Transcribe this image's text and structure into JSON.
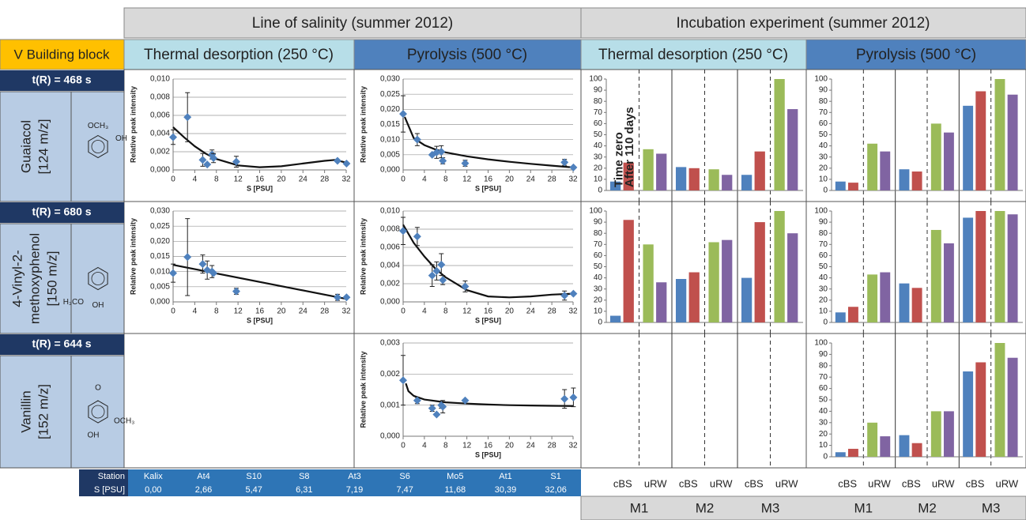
{
  "header": {
    "salinity": "Line of salinity (summer 2012)",
    "incubation": "Incubation experiment (summer 2012)",
    "building_block": "V Building block",
    "thermal": "Thermal desorption (250 °C)",
    "pyrolysis": "Pyrolysis (500 °C)"
  },
  "compounds": [
    {
      "tr": "t(R) = 468 s",
      "name": [
        "Guaiacol",
        "[124 m/z]"
      ],
      "structure_labels": [
        "OCH₃",
        "OH"
      ]
    },
    {
      "tr": "t(R) = 680 s",
      "name": [
        "4-Vinyl-2-",
        "methoxyphenol",
        "[150 m/z]"
      ],
      "structure_labels": [
        "H₃CO",
        "OH"
      ]
    },
    {
      "tr": "t(R) = 644 s",
      "name": [
        "Vanillin",
        "[152 m/z]"
      ],
      "structure_labels": [
        "O",
        "OCH₃",
        "OH"
      ]
    }
  ],
  "station_table": {
    "headers": [
      "Station",
      "S [PSU]"
    ],
    "stations": [
      "Kalix",
      "At4",
      "S10",
      "S8",
      "At3",
      "S6",
      "Mo5",
      "At1",
      "S1"
    ],
    "salinity": [
      "0,00",
      "2,66",
      "5,47",
      "6,31",
      "7,19",
      "7,47",
      "11,68",
      "30,39",
      "32,06"
    ]
  },
  "incubation_axis": {
    "subgroups": [
      "cBS",
      "uRW"
    ],
    "groups": [
      "M1",
      "M2",
      "M3"
    ]
  },
  "chart_data": [
    {
      "type": "scatter",
      "color": "#4f81bd",
      "grid": true,
      "ylabel": "Relative peak intensity",
      "xlabel": "S [PSU]",
      "x": [
        0,
        2.66,
        5.47,
        6.31,
        7.19,
        7.47,
        11.68,
        30.39,
        32.06
      ],
      "values": [
        0.0036,
        0.0058,
        0.0011,
        0.0006,
        0.0017,
        0.0013,
        0.0009,
        0.001,
        0.0007
      ],
      "errors": [
        0.0008,
        0.0027,
        0.0007,
        null,
        0.0005,
        0.0005,
        0.0006,
        null,
        null
      ],
      "fit": {
        "x": [
          0,
          2,
          4,
          6,
          8,
          12,
          16,
          20,
          24,
          28,
          30,
          32
        ],
        "values": [
          0.0047,
          0.0036,
          0.0026,
          0.0018,
          0.0012,
          0.0005,
          0.0003,
          0.0004,
          0.0007,
          0.001,
          0.0011,
          0.0008
        ]
      },
      "xlim": [
        0,
        32
      ],
      "xticks": [
        0,
        4,
        8,
        12,
        16,
        20,
        24,
        28,
        32
      ],
      "ylim": [
        0,
        0.01
      ],
      "yticks": [
        {
          "value": 0,
          "label": "0,000"
        },
        {
          "value": 0.002,
          "label": "0,002"
        },
        {
          "value": 0.004,
          "label": "0,004"
        },
        {
          "value": 0.006,
          "label": "0,006"
        },
        {
          "value": 0.008,
          "label": "0,008"
        },
        {
          "value": 0.01,
          "label": "0,010"
        }
      ]
    },
    {
      "type": "scatter",
      "color": "#4f81bd",
      "grid": true,
      "ylabel": "Relative peak intensity",
      "xlabel": "S [PSU]",
      "x": [
        0,
        2.66,
        5.47,
        6.31,
        7.19,
        7.47,
        11.68,
        30.39,
        32.06
      ],
      "values": [
        0.0185,
        0.01,
        0.005,
        0.0058,
        0.006,
        0.003,
        0.0022,
        0.0025,
        0.0008
      ],
      "errors": [
        0.006,
        0.002,
        null,
        0.002,
        0.002,
        0.001,
        0.001,
        0.001,
        null
      ],
      "fit": {
        "x": [
          0.3,
          2,
          4,
          6,
          8,
          12,
          16,
          20,
          24,
          28,
          32
        ],
        "values": [
          0.0175,
          0.0105,
          0.0082,
          0.0068,
          0.0058,
          0.0045,
          0.0035,
          0.0027,
          0.002,
          0.0014,
          0.0008
        ]
      },
      "xlim": [
        0,
        32
      ],
      "xticks": [
        0,
        4,
        8,
        12,
        16,
        20,
        24,
        28,
        32
      ],
      "ylim": [
        0,
        0.03
      ],
      "yticks": [
        {
          "value": 0,
          "label": "0,000"
        },
        {
          "value": 0.005,
          "label": "0,005"
        },
        {
          "value": 0.01,
          "label": "0,010"
        },
        {
          "value": 0.015,
          "label": "0,015"
        },
        {
          "value": 0.02,
          "label": "0,020"
        },
        {
          "value": 0.025,
          "label": "0,025"
        },
        {
          "value": 0.03,
          "label": "0,030"
        }
      ]
    },
    {
      "type": "scatter",
      "color": "#4f81bd",
      "grid": true,
      "ylabel": "Relative peak intensity",
      "xlabel": "S [PSU]",
      "x": [
        0,
        2.66,
        5.47,
        6.31,
        7.19,
        7.47,
        11.68,
        30.39,
        32.06
      ],
      "values": [
        0.0095,
        0.0148,
        0.0125,
        0.0105,
        0.01,
        0.0095,
        0.0035,
        0.0015,
        0.0015
      ],
      "errors": [
        0.003,
        0.0127,
        0.003,
        0.003,
        0.002,
        null,
        0.001,
        0.001,
        null
      ],
      "fit": {
        "x": [
          0,
          32
        ],
        "values": [
          0.0122,
          0.001
        ]
      },
      "xlim": [
        0,
        32
      ],
      "xticks": [
        0,
        4,
        8,
        12,
        16,
        20,
        24,
        28,
        32
      ],
      "ylim": [
        0,
        0.03
      ],
      "yticks": [
        {
          "value": 0,
          "label": "0,000"
        },
        {
          "value": 0.005,
          "label": "0,005"
        },
        {
          "value": 0.01,
          "label": "0,010"
        },
        {
          "value": 0.015,
          "label": "0,015"
        },
        {
          "value": 0.02,
          "label": "0,020"
        },
        {
          "value": 0.025,
          "label": "0,025"
        },
        {
          "value": 0.03,
          "label": "0,030"
        }
      ]
    },
    {
      "type": "scatter",
      "color": "#4f81bd",
      "grid": true,
      "ylabel": "Relative peak intensity",
      "xlabel": "S [PSU]",
      "x": [
        0,
        2.66,
        5.47,
        6.31,
        7.19,
        7.47,
        11.68,
        30.39,
        32.06
      ],
      "values": [
        0.0078,
        0.0072,
        0.0029,
        0.0034,
        0.0041,
        0.0024,
        0.0017,
        0.0007,
        0.0009
      ],
      "errors": [
        0.0015,
        0.001,
        0.0012,
        0.001,
        0.0012,
        0.0005,
        0.0006,
        0.0005,
        null
      ],
      "fit": {
        "x": [
          0,
          2,
          4,
          6,
          8,
          12,
          16,
          20,
          24,
          28,
          32
        ],
        "values": [
          0.0085,
          0.0065,
          0.005,
          0.0037,
          0.0027,
          0.0013,
          0.0006,
          0.0005,
          0.0006,
          0.0008,
          0.0009
        ]
      },
      "xlim": [
        0,
        32
      ],
      "xticks": [
        0,
        4,
        8,
        12,
        16,
        20,
        24,
        28,
        32
      ],
      "ylim": [
        0,
        0.01
      ],
      "yticks": [
        {
          "value": 0,
          "label": "0,000"
        },
        {
          "value": 0.002,
          "label": "0,002"
        },
        {
          "value": 0.004,
          "label": "0,004"
        },
        {
          "value": 0.006,
          "label": "0,006"
        },
        {
          "value": 0.008,
          "label": "0,008"
        },
        {
          "value": 0.01,
          "label": "0,010"
        }
      ]
    },
    {
      "type": "scatter",
      "color": "#4f81bd",
      "grid": true,
      "ylabel": "Relative peak intensity",
      "xlabel": "S [PSU]",
      "x": [
        0,
        2.66,
        5.47,
        6.31,
        7.19,
        7.47,
        11.68,
        30.39,
        32.06
      ],
      "values": [
        0.0018,
        0.00115,
        0.0009,
        0.0007,
        0.001,
        0.00095,
        0.00115,
        0.0012,
        0.00125
      ],
      "errors": [
        0.0008,
        0.0001,
        0.0001,
        null,
        0.0001,
        0.0002,
        null,
        0.0003,
        0.0003
      ],
      "fit": {
        "x": [
          0.5,
          1,
          2,
          4,
          8,
          12,
          16,
          20,
          24,
          28,
          32
        ],
        "values": [
          0.0017,
          0.00145,
          0.0013,
          0.00118,
          0.00109,
          0.00105,
          0.00102,
          0.001,
          0.00099,
          0.00098,
          0.00097
        ]
      },
      "xlim": [
        0,
        32
      ],
      "xticks": [
        0,
        4,
        8,
        12,
        16,
        20,
        24,
        28,
        32
      ],
      "ylim": [
        0,
        0.003
      ],
      "yticks": [
        {
          "value": 0,
          "label": "0,000"
        },
        {
          "value": 0.001,
          "label": "0,001"
        },
        {
          "value": 0.002,
          "label": "0,002"
        },
        {
          "value": 0.003,
          "label": "0,003"
        }
      ]
    },
    {
      "type": "bar",
      "colors": [
        "#4f81bd",
        "#c0504d",
        "#9bbb59",
        "#8064a2"
      ],
      "annotations": [
        "Time zero",
        "After 110 days"
      ],
      "values": [
        [
          8,
          25,
          37,
          33
        ],
        [
          21,
          20,
          19,
          14
        ],
        [
          14,
          35,
          100,
          73
        ]
      ],
      "ylim": [
        0,
        100
      ],
      "yticks": [
        0,
        10,
        20,
        30,
        40,
        50,
        60,
        70,
        80,
        90,
        100
      ]
    },
    {
      "type": "bar",
      "colors": [
        "#4f81bd",
        "#c0504d",
        "#9bbb59",
        "#8064a2"
      ],
      "values": [
        [
          8,
          7,
          42,
          35
        ],
        [
          19,
          17,
          60,
          52
        ],
        [
          76,
          89,
          100,
          86
        ]
      ],
      "ylim": [
        0,
        100
      ],
      "yticks": [
        0,
        10,
        20,
        30,
        40,
        50,
        60,
        70,
        80,
        90,
        100
      ]
    },
    {
      "type": "bar",
      "colors": [
        "#4f81bd",
        "#c0504d",
        "#9bbb59",
        "#8064a2"
      ],
      "values": [
        [
          6,
          92,
          70,
          36
        ],
        [
          39,
          45,
          72,
          74
        ],
        [
          40,
          90,
          100,
          80
        ]
      ],
      "ylim": [
        0,
        100
      ],
      "yticks": [
        0,
        10,
        20,
        30,
        40,
        50,
        60,
        70,
        80,
        90,
        100
      ]
    },
    {
      "type": "bar",
      "colors": [
        "#4f81bd",
        "#c0504d",
        "#9bbb59",
        "#8064a2"
      ],
      "values": [
        [
          9,
          14,
          43,
          45
        ],
        [
          35,
          31,
          83,
          71
        ],
        [
          94,
          100,
          100,
          97
        ]
      ],
      "ylim": [
        0,
        100
      ],
      "yticks": [
        0,
        10,
        20,
        30,
        40,
        50,
        60,
        70,
        80,
        90,
        100
      ]
    },
    {
      "type": "bar",
      "colors": [
        "#4f81bd",
        "#c0504d",
        "#9bbb59",
        "#8064a2"
      ],
      "values": [
        [
          4,
          7,
          30,
          18
        ],
        [
          19,
          12,
          40,
          40
        ],
        [
          75,
          83,
          100,
          87
        ]
      ],
      "ylim": [
        0,
        100
      ],
      "yticks": [
        0,
        10,
        20,
        30,
        40,
        50,
        60,
        70,
        80,
        90,
        100
      ]
    }
  ]
}
